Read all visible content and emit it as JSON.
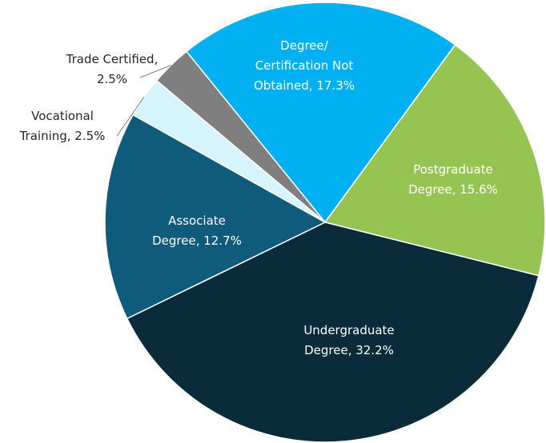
{
  "chart_data": {
    "type": "pie",
    "labels": [
      [
        "Degree/",
        "Certification Not",
        "Obtained, 17.3%"
      ],
      [
        "Postgraduate",
        "Degree, 15.6%"
      ],
      [
        "Undergraduate",
        "Degree, 32.2%"
      ],
      [
        "Associate",
        "Degree, 12.7%"
      ],
      [
        "Vocational",
        "Training, 2.5%"
      ],
      [
        "Trade Certified,",
        "2.5%"
      ]
    ],
    "values": [
      17.3,
      15.6,
      32.2,
      12.7,
      2.5,
      2.5
    ],
    "colors": [
      "#00b0f0",
      "#96c452",
      "#0a2b3a",
      "#0f5b7b",
      "#d6f4fd",
      "#7f7f7f"
    ]
  }
}
